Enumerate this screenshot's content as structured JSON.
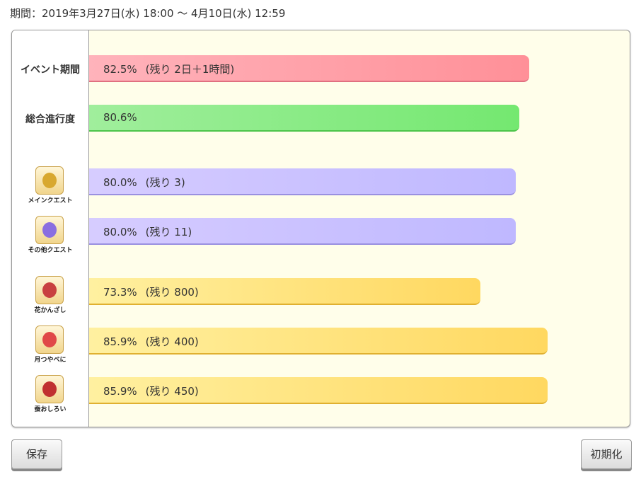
{
  "header": {
    "period": "期間：2019年3月27日(水) 18:00 ～ 4月10日(水) 12:59"
  },
  "summary_rows": [
    {
      "label": "イベント期間",
      "value": 82.5,
      "value_label": "82.5%",
      "remaining": "(残り 2日＋1時間)",
      "color": [
        "#ffb3bb",
        "#ff9098"
      ],
      "edge": "#e07080"
    },
    {
      "label": "総合進行度",
      "value": 80.6,
      "value_label": "80.6%",
      "color": [
        "#a0ee9c",
        "#74e870"
      ],
      "edge": "#4cc44a"
    }
  ],
  "item_rows": [
    {
      "label": "メインクエスト",
      "value": 80.0,
      "value_label": "80.0%",
      "remaining": "(残り 3)",
      "color": [
        "#d6ccff",
        "#bfb8ff"
      ],
      "edge": "#9a90e0"
    },
    {
      "label": "その他クエスト",
      "value": 80.0,
      "value_label": "80.0%",
      "remaining": "(残り 11)",
      "color": [
        "#d6ccff",
        "#bfb8ff"
      ],
      "edge": "#9a90e0"
    },
    {
      "label": "花かんざし",
      "value": 73.3,
      "value_label": "73.3%",
      "remaining": "(残り 800)",
      "color": [
        "#fff0a0",
        "#ffd860"
      ],
      "edge": "#e0b030"
    },
    {
      "label": "月つやべに",
      "value": 85.9,
      "value_label": "85.9%",
      "remaining": "(残り 400)",
      "color": [
        "#fff0a0",
        "#ffd860"
      ],
      "edge": "#e0b030"
    },
    {
      "label": "蚕おしろい",
      "value": 85.9,
      "value_label": "85.9%",
      "remaining": "(残り 450)",
      "color": [
        "#fff0a0",
        "#ffd860"
      ],
      "edge": "#e0b030"
    }
  ],
  "buttons": {
    "save": "保存",
    "reset": "初期化"
  }
}
